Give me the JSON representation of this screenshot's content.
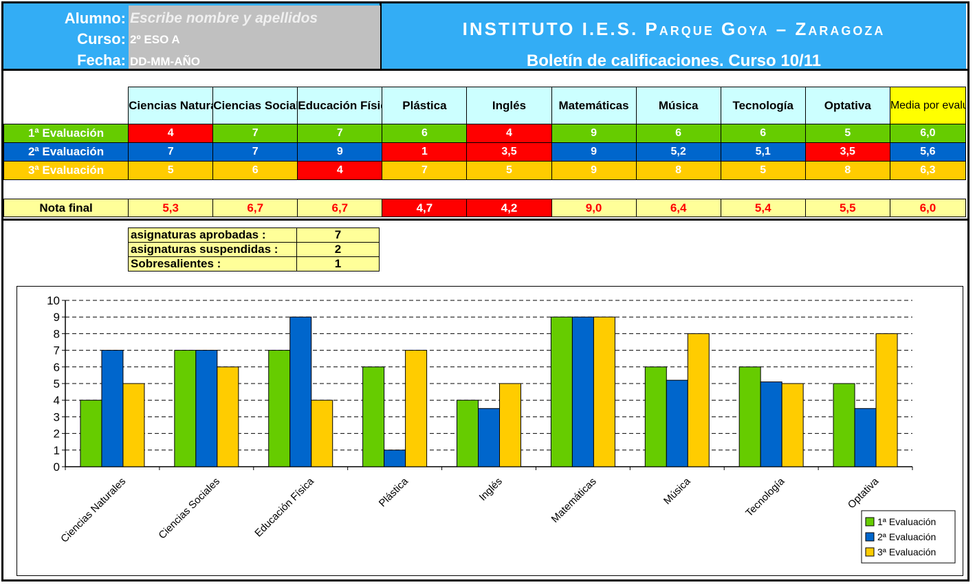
{
  "header": {
    "alumno_label": "Alumno:",
    "alumno_value": "Escribe nombre y apellidos",
    "curso_label": "Curso:",
    "curso_value": "2º ESO A",
    "fecha_label": "Fecha:",
    "fecha_value": "DD-MM-AÑO",
    "institute": "INSTITUTO I.E.S. Parque Goya – Zaragoza",
    "subtitle": "Boletín de calificaciones. Curso 10/11"
  },
  "subjects": [
    "Ciencias Naturales",
    "Ciencias Sociales",
    "Educación Física",
    "Plástica",
    "Inglés",
    "Matemáticas",
    "Música",
    "Tecnología",
    "Optativa"
  ],
  "media_header": "Media por evaluación",
  "evaluations": [
    {
      "label": "1ª Evaluación",
      "values": [
        "4",
        "7",
        "7",
        "6",
        "4",
        "9",
        "6",
        "6",
        "5"
      ],
      "media": "6,0"
    },
    {
      "label": "2ª Evaluación",
      "values": [
        "7",
        "7",
        "9",
        "1",
        "3,5",
        "9",
        "5,2",
        "5,1",
        "3,5"
      ],
      "media": "5,6"
    },
    {
      "label": "3ª Evaluación",
      "values": [
        "5",
        "6",
        "4",
        "7",
        "5",
        "9",
        "8",
        "5",
        "8"
      ],
      "media": "6,3"
    }
  ],
  "final": {
    "label": "Nota final",
    "values": [
      "5,3",
      "6,7",
      "6,7",
      "4,7",
      "4,2",
      "9,0",
      "6,4",
      "5,4",
      "5,5"
    ],
    "media": "6,0"
  },
  "summary": [
    {
      "label": "asignaturas aprobadas :",
      "value": "7"
    },
    {
      "label": "asignaturas suspendidas :",
      "value": "2"
    },
    {
      "label": "Sobresalientes :",
      "value": "1"
    }
  ],
  "colors": {
    "eval1": "#66cc00",
    "eval2": "#0066cc",
    "eval3": "#ffcc00",
    "fail": "#ff0000",
    "header": "#33adf5"
  },
  "chart_data": {
    "type": "bar",
    "categories": [
      "Ciencias Naturales",
      "Ciencias Sociales",
      "Educación Física",
      "Plástica",
      "Inglés",
      "Matemáticas",
      "Música",
      "Tecnología",
      "Optativa"
    ],
    "series": [
      {
        "name": "1ª Evaluación",
        "values": [
          4,
          7,
          7,
          6,
          4,
          9,
          6,
          6,
          5
        ]
      },
      {
        "name": "2ª Evaluación",
        "values": [
          7,
          7,
          9,
          1,
          3.5,
          9,
          5.2,
          5.1,
          3.5
        ]
      },
      {
        "name": "3ª Evaluación",
        "values": [
          5,
          6,
          4,
          7,
          5,
          9,
          8,
          5,
          8
        ]
      }
    ],
    "yticks": [
      "0",
      "1",
      "2",
      "3",
      "4",
      "5",
      "6",
      "7",
      "8",
      "9",
      "10"
    ],
    "ylim": [
      0,
      10
    ],
    "grid": true,
    "legend": "bottom-right"
  }
}
